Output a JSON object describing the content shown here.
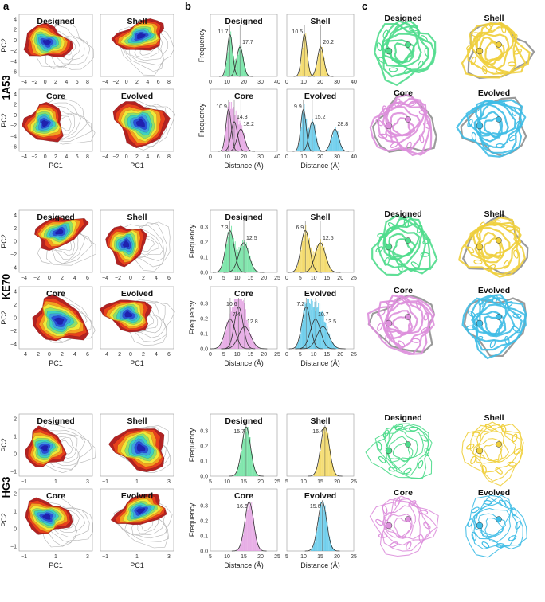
{
  "panel_labels": {
    "a": "a",
    "b": "b",
    "c": "c"
  },
  "conditions": [
    "Designed",
    "Shell",
    "Core",
    "Evolved"
  ],
  "colors": {
    "Designed": "#4fdc8c",
    "Shell": "#f0cf3c",
    "Core": "#dd8fdc",
    "Evolved": "#3fbde6",
    "fit_line": "#333333",
    "grey_contour": "#b5b5b5",
    "kde_scale": [
      "#b22222",
      "#e8401c",
      "#f5a020",
      "#f0e83a",
      "#8ee06a",
      "#3fd0c0",
      "#3f9fe0",
      "#2a4fd8",
      "#2020b0"
    ]
  },
  "proteins": [
    {
      "name": "1A53",
      "pca": {
        "xlabel": "PC1",
        "ylabel": "PC2",
        "xticks": [
          "−4",
          "−2",
          "0",
          "2",
          "4",
          "6",
          "8"
        ],
        "yticks": [
          "4",
          "2",
          "0",
          "−2",
          "−4",
          "−6"
        ]
      },
      "dist": {
        "xlabel": "Distance (Å)",
        "ylabel": "Frequency",
        "xticks": [
          "0",
          "10",
          "20",
          "30",
          "40"
        ],
        "yticks": []
      }
    },
    {
      "name": "KE70",
      "pca": {
        "xlabel": "PC1",
        "ylabel": "PC2",
        "xticks": [
          "−4",
          "−2",
          "0",
          "2",
          "4",
          "6"
        ],
        "yticks": [
          "4",
          "2",
          "0",
          "−2",
          "−4"
        ]
      },
      "dist": {
        "xlabel": "Distance (Å)",
        "ylabel": "Frequency",
        "xticks": [
          "0",
          "5",
          "10",
          "15",
          "20",
          "25"
        ],
        "yticks": [
          "0.0",
          "0.1",
          "0.2",
          "0.3"
        ]
      }
    },
    {
      "name": "HG3",
      "pca": {
        "xlabel": "PC1",
        "ylabel": "PC2",
        "xticks": [
          "−1",
          "1",
          "3"
        ],
        "yticks": [
          "2",
          "1",
          "0",
          "−1"
        ]
      },
      "dist": {
        "xlabel": "Distance (Å)",
        "ylabel": "Frequency",
        "xticks": [
          "5",
          "10",
          "15",
          "20",
          "25"
        ],
        "yticks": [
          "0.0",
          "0.1",
          "0.2",
          "0.3"
        ]
      }
    }
  ],
  "chart_data": [
    {
      "type": "histogram",
      "protein": "1A53",
      "xlabel": "Distance (Å)",
      "ylabel": "Frequency",
      "xlim": [
        0,
        40
      ],
      "series": [
        {
          "name": "Designed",
          "peak_labels": [
            "11.7",
            "17.7"
          ],
          "peaks": [
            11.7,
            17.7
          ]
        },
        {
          "name": "Shell",
          "peak_labels": [
            "10.5",
            "20.2"
          ],
          "peaks": [
            10.5,
            20.2
          ]
        },
        {
          "name": "Core",
          "peak_labels": [
            "10.9",
            "14.3",
            "18.2"
          ],
          "peaks": [
            10.9,
            14.3,
            18.2
          ]
        },
        {
          "name": "Evolved",
          "peak_labels": [
            "9.9",
            "15.2",
            "28.8"
          ],
          "peaks": [
            9.9,
            15.2,
            28.8
          ]
        }
      ]
    },
    {
      "type": "histogram",
      "protein": "KE70",
      "xlabel": "Distance (Å)",
      "ylabel": "Frequency",
      "xlim": [
        0,
        25
      ],
      "ylim": [
        0,
        0.35
      ],
      "series": [
        {
          "name": "Designed",
          "peak_labels": [
            "7.3",
            "12.5"
          ],
          "peaks": [
            7.3,
            12.5
          ]
        },
        {
          "name": "Shell",
          "peak_labels": [
            "6.9",
            "12.5"
          ],
          "peaks": [
            6.9,
            12.5
          ]
        },
        {
          "name": "Core",
          "peak_labels": [
            "10.6",
            "7.4",
            "12.8"
          ],
          "peaks": [
            10.6,
            7.4,
            12.8
          ]
        },
        {
          "name": "Evolved",
          "peak_labels": [
            "7.2",
            "10.7",
            "13.5"
          ],
          "peaks": [
            7.2,
            10.7,
            13.5
          ]
        }
      ]
    },
    {
      "type": "histogram",
      "protein": "HG3",
      "xlabel": "Distance (Å)",
      "ylabel": "Frequency",
      "xlim": [
        5,
        25
      ],
      "ylim": [
        0,
        0.35
      ],
      "series": [
        {
          "name": "Designed",
          "peak_labels": [
            "15.7"
          ],
          "peaks": [
            15.7
          ]
        },
        {
          "name": "Shell",
          "peak_labels": [
            "16.4"
          ],
          "peaks": [
            16.4
          ]
        },
        {
          "name": "Core",
          "peak_labels": [
            "16.6"
          ],
          "peaks": [
            16.6
          ]
        },
        {
          "name": "Evolved",
          "peak_labels": [
            "15.6"
          ],
          "peaks": [
            15.6
          ]
        }
      ]
    }
  ]
}
